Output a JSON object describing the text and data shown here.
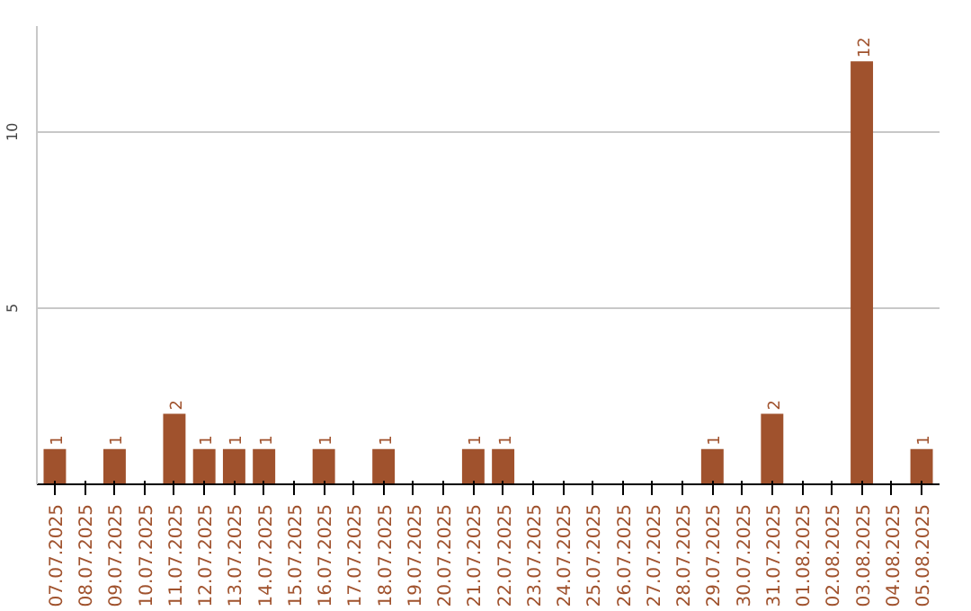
{
  "chart_data": {
    "type": "bar",
    "categories": [
      "07.07.2025",
      "08.07.2025",
      "09.07.2025",
      "10.07.2025",
      "11.07.2025",
      "12.07.2025",
      "13.07.2025",
      "14.07.2025",
      "15.07.2025",
      "16.07.2025",
      "17.07.2025",
      "18.07.2025",
      "19.07.2025",
      "20.07.2025",
      "21.07.2025",
      "22.07.2025",
      "23.07.2025",
      "24.07.2025",
      "25.07.2025",
      "26.07.2025",
      "27.07.2025",
      "28.07.2025",
      "29.07.2025",
      "30.07.2025",
      "31.07.2025",
      "01.08.2025",
      "02.08.2025",
      "03.08.2025",
      "04.08.2025",
      "05.08.2025"
    ],
    "values": [
      1,
      0,
      1,
      0,
      2,
      1,
      1,
      1,
      0,
      1,
      0,
      1,
      0,
      0,
      1,
      1,
      0,
      0,
      0,
      0,
      0,
      0,
      1,
      0,
      2,
      0,
      0,
      12,
      0,
      1
    ],
    "value_labels": [
      "1",
      null,
      "1",
      null,
      "2",
      "1",
      "1",
      "1",
      null,
      "1",
      null,
      "1",
      null,
      null,
      "1",
      "1",
      null,
      null,
      null,
      null,
      null,
      null,
      "1",
      null,
      "2",
      null,
      null,
      "12",
      null,
      "1"
    ],
    "color": "#a0522d",
    "ylim": [
      0,
      13
    ],
    "yticks": [
      5,
      10
    ],
    "grid": "y"
  }
}
